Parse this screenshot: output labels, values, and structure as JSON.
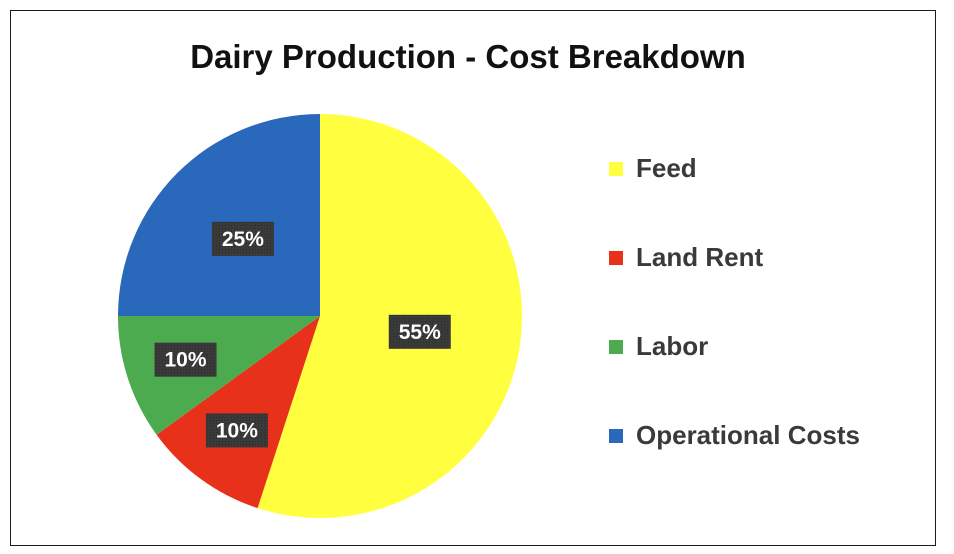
{
  "chart_data": {
    "type": "pie",
    "title": "Dairy Production - Cost Breakdown",
    "categories": [
      "Feed",
      "Land Rent",
      "Labor",
      "Operational Costs"
    ],
    "values": [
      55,
      10,
      10,
      25
    ],
    "data_labels": [
      "55%",
      "10%",
      "10%",
      "25%"
    ],
    "colors": [
      "#FFFF3F",
      "#E8311A",
      "#4CAB4F",
      "#2A68BC"
    ],
    "start_angle_deg": 0,
    "direction": "clockwise",
    "legend_position": "right"
  }
}
